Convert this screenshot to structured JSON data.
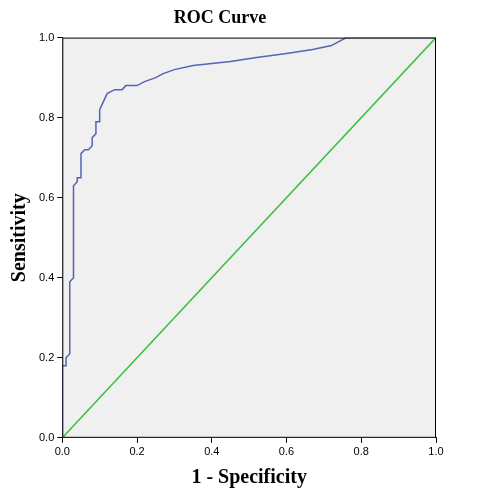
{
  "chart_data": {
    "type": "line",
    "title": "ROC Curve",
    "x_label": "1 - Specificity",
    "y_label": "Sensitivity",
    "series": [
      {
        "color": "#5663b5",
        "x": [
          0,
          0,
          0.01,
          0.01,
          0.02,
          0.02,
          0.03,
          0.03,
          0.04,
          0.04,
          0.05,
          0.05,
          0.06,
          0.07,
          0.08,
          0.08,
          0.09,
          0.09,
          0.1,
          0.1,
          0.11,
          0.12,
          0.14,
          0.16,
          0.17,
          0.2,
          0.22,
          0.25,
          0.27,
          0.3,
          0.35,
          0.45,
          0.52,
          0.6,
          0.67,
          0.72,
          0.74,
          0.76,
          1.0
        ],
        "values": [
          0,
          0.18,
          0.18,
          0.2,
          0.21,
          0.39,
          0.4,
          0.63,
          0.64,
          0.65,
          0.65,
          0.71,
          0.72,
          0.72,
          0.73,
          0.75,
          0.76,
          0.79,
          0.79,
          0.82,
          0.84,
          0.86,
          0.87,
          0.87,
          0.88,
          0.88,
          0.89,
          0.9,
          0.91,
          0.92,
          0.93,
          0.94,
          0.95,
          0.96,
          0.97,
          0.98,
          0.99,
          1.0,
          1.0
        ]
      },
      {
        "color": "#3dbf3d",
        "x": [
          0,
          1.0
        ],
        "values": [
          0,
          1.0
        ]
      }
    ],
    "xlim": [
      0,
      1.0
    ],
    "ylim": [
      0,
      1.0
    ],
    "xticks": [
      {
        "value": 0,
        "label": "0.0"
      },
      {
        "value": 0.2,
        "label": "0.2"
      },
      {
        "value": 0.4,
        "label": "0.4"
      },
      {
        "value": 0.6,
        "label": "0.6"
      },
      {
        "value": 0.8,
        "label": "0.8"
      },
      {
        "value": 1.0,
        "label": "1.0"
      }
    ],
    "yticks": [
      {
        "value": 0,
        "label": "0.0"
      },
      {
        "value": 0.2,
        "label": "0.2"
      },
      {
        "value": 0.4,
        "label": "0.4"
      },
      {
        "value": 0.6,
        "label": "0.6"
      },
      {
        "value": 0.8,
        "label": "0.8"
      },
      {
        "value": 1.0,
        "label": "1.0"
      }
    ],
    "grid": false
  }
}
